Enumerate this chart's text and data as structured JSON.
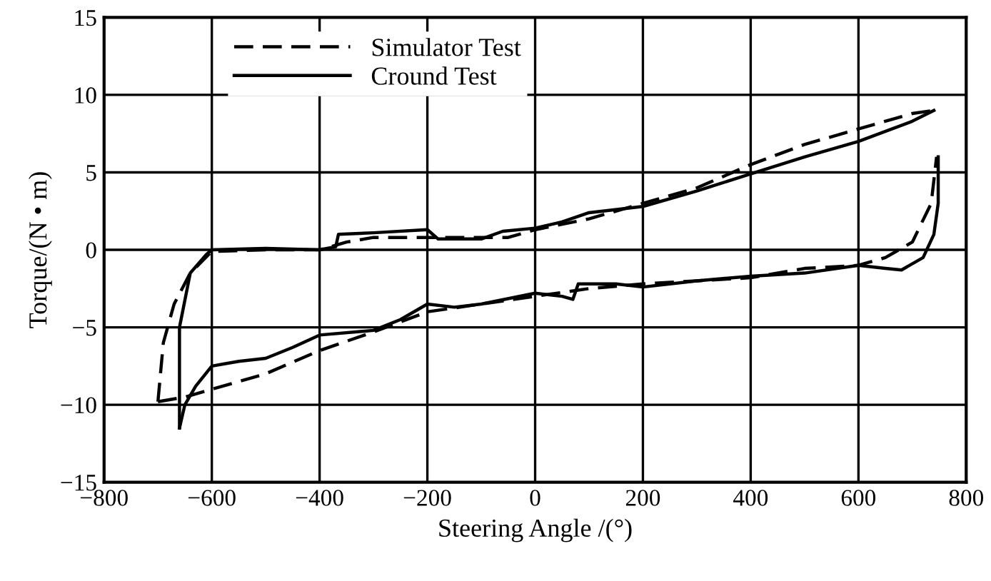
{
  "chart_data": {
    "type": "line",
    "xlabel": "Steering Angle /(°)",
    "ylabel": "Torque/(N • m)",
    "xlim": [
      -800,
      800
    ],
    "ylim": [
      -15,
      15
    ],
    "xticks": [
      -800,
      -600,
      -400,
      -200,
      0,
      200,
      400,
      600,
      800
    ],
    "yticks": [
      -15,
      -10,
      -5,
      0,
      5,
      10,
      15
    ],
    "grid": true,
    "legend": "top left",
    "series": [
      {
        "name": "Simulator Test",
        "color": "#000000",
        "line_style": "dashed",
        "x": [
          -700,
          -690,
          -670,
          -640,
          -600,
          -500,
          -400,
          -350,
          -300,
          -200,
          -50,
          0,
          100,
          200,
          300,
          400,
          500,
          600,
          700,
          740
        ],
        "values": [
          -9.8,
          -6,
          -3.5,
          -1.5,
          -0.1,
          0,
          0,
          0.5,
          0.8,
          0.8,
          0.8,
          1.3,
          2,
          3,
          4,
          5.5,
          6.8,
          7.8,
          8.8,
          9
        ]
      },
      {
        "color": "#000000",
        "line_style": "dashed",
        "x": [
          -700,
          -650,
          -600,
          -500,
          -400,
          -300,
          -200,
          -100,
          0,
          100,
          200,
          300,
          400,
          500,
          600,
          650,
          700,
          735,
          745
        ],
        "values": [
          -9.8,
          -9.5,
          -9,
          -8,
          -6.5,
          -5.3,
          -4,
          -3.5,
          -3,
          -2.5,
          -2.2,
          -2,
          -1.8,
          -1.2,
          -1,
          -0.5,
          0.5,
          3,
          6
        ]
      },
      {
        "name": "Cround Test",
        "color": "#000000",
        "line_style": "solid",
        "x": [
          -660,
          -660,
          -640,
          -610,
          -600,
          -500,
          -400,
          -370,
          -365,
          -300,
          -200,
          -180,
          -100,
          -60,
          0,
          50,
          100,
          200,
          300,
          400,
          500,
          600,
          700,
          740
        ],
        "values": [
          -11.5,
          -5,
          -1.5,
          -0.3,
          0,
          0.1,
          0,
          0.2,
          1,
          1.1,
          1.3,
          0.7,
          0.7,
          1.2,
          1.4,
          1.8,
          2.4,
          2.8,
          3.8,
          4.9,
          6,
          7,
          8.3,
          9
        ]
      },
      {
        "color": "#000000",
        "line_style": "solid",
        "x": [
          -660,
          -650,
          -630,
          -600,
          -550,
          -500,
          -450,
          -400,
          -300,
          -250,
          -200,
          -150,
          -100,
          0,
          50,
          70,
          80,
          150,
          200,
          300,
          400,
          500,
          600,
          650,
          680,
          720,
          740,
          748,
          748
        ],
        "values": [
          -11.5,
          -10,
          -8.8,
          -7.5,
          -7.2,
          -7,
          -6.3,
          -5.5,
          -5.2,
          -4.5,
          -3.5,
          -3.7,
          -3.5,
          -2.8,
          -3,
          -3.2,
          -2.2,
          -2.2,
          -2.4,
          -2,
          -1.7,
          -1.5,
          -1,
          -1.2,
          -1.3,
          -0.5,
          1,
          3,
          6
        ]
      }
    ]
  }
}
